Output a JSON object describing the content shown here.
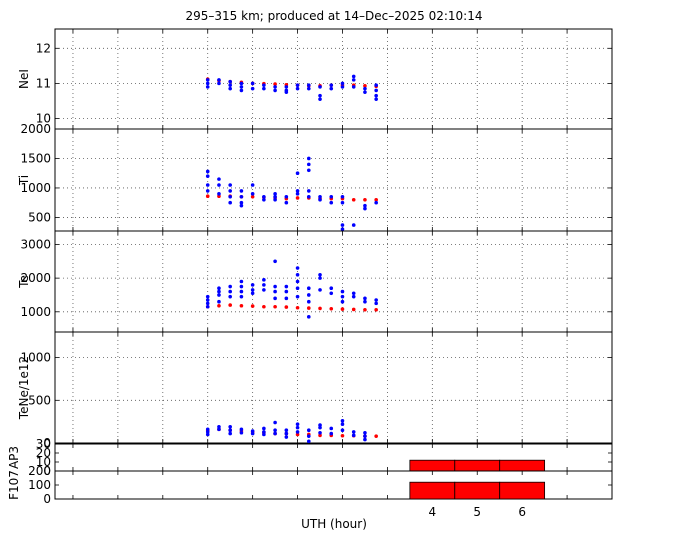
{
  "title": "295–315 km; produced at 14–Dec–2025 02:10:14",
  "xlabel": "UTH (hour)",
  "colors": {
    "model": "#ff0000",
    "measured": "#0000ff",
    "index_bar": "#ff0000"
  },
  "chart_data": [
    {
      "type": "scatter",
      "ylabel": "NeI",
      "ylim": [
        9.7,
        12.55
      ],
      "yticks": [
        10,
        11,
        12
      ],
      "grid": true,
      "series": [
        {
          "color": "red",
          "points": [
            [
              -1,
              11.12
            ],
            [
              -0.75,
              11.08
            ],
            [
              -0.5,
              11.05
            ],
            [
              -0.25,
              11.03
            ],
            [
              0,
              11.0
            ],
            [
              0.25,
              10.99
            ],
            [
              0.5,
              10.98
            ],
            [
              0.75,
              10.96
            ],
            [
              1,
              10.95
            ],
            [
              1.25,
              10.93
            ],
            [
              1.5,
              10.93
            ],
            [
              1.75,
              10.95
            ],
            [
              2,
              10.95
            ],
            [
              2.25,
              10.95
            ],
            [
              2.5,
              10.93
            ],
            [
              2.75,
              10.92
            ]
          ]
        },
        {
          "color": "blue",
          "points": [
            [
              -1,
              11.1
            ],
            [
              -1,
              11.0
            ],
            [
              -1,
              10.9
            ],
            [
              -0.75,
              11.1
            ],
            [
              -0.75,
              11.0
            ],
            [
              -0.5,
              11.05
            ],
            [
              -0.5,
              10.95
            ],
            [
              -0.5,
              10.85
            ],
            [
              -0.25,
              11.0
            ],
            [
              -0.25,
              10.9
            ],
            [
              -0.25,
              10.8
            ],
            [
              0,
              11.0
            ],
            [
              0,
              10.85
            ],
            [
              0.25,
              10.95
            ],
            [
              0.25,
              10.85
            ],
            [
              0.5,
              10.9
            ],
            [
              0.5,
              10.8
            ],
            [
              0.75,
              10.9
            ],
            [
              0.75,
              10.8
            ],
            [
              0.75,
              10.75
            ],
            [
              1,
              10.95
            ],
            [
              1,
              10.85
            ],
            [
              1.25,
              10.95
            ],
            [
              1.25,
              10.85
            ],
            [
              1.5,
              10.9
            ],
            [
              1.5,
              10.65
            ],
            [
              1.5,
              10.55
            ],
            [
              1.75,
              10.95
            ],
            [
              1.75,
              10.85
            ],
            [
              2,
              10.9
            ],
            [
              2,
              11.0
            ],
            [
              2.25,
              11.2
            ],
            [
              2.25,
              11.1
            ],
            [
              2.25,
              10.9
            ],
            [
              2.5,
              10.85
            ],
            [
              2.5,
              10.75
            ],
            [
              2.75,
              10.95
            ],
            [
              2.75,
              10.8
            ],
            [
              2.75,
              10.65
            ],
            [
              2.75,
              10.55
            ]
          ]
        }
      ]
    },
    {
      "type": "scatter",
      "ylabel": "Ti",
      "ylim": [
        270,
        2000
      ],
      "yticks": [
        500,
        1000,
        1500,
        2000
      ],
      "grid": true,
      "series": [
        {
          "color": "red",
          "points": [
            [
              -1,
              860
            ],
            [
              -0.75,
              860
            ],
            [
              -0.5,
              860
            ],
            [
              -0.25,
              850
            ],
            [
              0,
              850
            ],
            [
              0.25,
              840
            ],
            [
              0.5,
              830
            ],
            [
              0.75,
              820
            ],
            [
              1,
              830
            ],
            [
              1.25,
              830
            ],
            [
              1.5,
              820
            ],
            [
              1.75,
              820
            ],
            [
              2,
              820
            ],
            [
              2.25,
              800
            ],
            [
              2.5,
              800
            ],
            [
              2.75,
              800
            ]
          ]
        },
        {
          "color": "blue",
          "points": [
            [
              -1,
              1280
            ],
            [
              -1,
              1200
            ],
            [
              -1,
              1050
            ],
            [
              -1,
              950
            ],
            [
              -0.75,
              1150
            ],
            [
              -0.75,
              1050
            ],
            [
              -0.75,
              900
            ],
            [
              -0.5,
              1050
            ],
            [
              -0.5,
              950
            ],
            [
              -0.5,
              850
            ],
            [
              -0.5,
              750
            ],
            [
              -0.25,
              950
            ],
            [
              -0.25,
              850
            ],
            [
              -0.25,
              750
            ],
            [
              -0.25,
              700
            ],
            [
              0,
              1050
            ],
            [
              0,
              900
            ],
            [
              0.25,
              850
            ],
            [
              0.25,
              800
            ],
            [
              0.5,
              900
            ],
            [
              0.5,
              850
            ],
            [
              0.5,
              800
            ],
            [
              0.75,
              850
            ],
            [
              0.75,
              750
            ],
            [
              1,
              950
            ],
            [
              1,
              900
            ],
            [
              1,
              1250
            ],
            [
              1.25,
              1500
            ],
            [
              1.25,
              1400
            ],
            [
              1.25,
              1300
            ],
            [
              1.25,
              950
            ],
            [
              1.25,
              850
            ],
            [
              1.5,
              850
            ],
            [
              1.5,
              800
            ],
            [
              1.75,
              850
            ],
            [
              1.75,
              750
            ],
            [
              2,
              850
            ],
            [
              2,
              750
            ],
            [
              2,
              370
            ],
            [
              2,
              300
            ],
            [
              2.25,
              370
            ],
            [
              2.5,
              700
            ],
            [
              2.5,
              650
            ],
            [
              2.75,
              750
            ]
          ]
        }
      ]
    },
    {
      "type": "scatter",
      "ylabel": "Te",
      "ylim": [
        400,
        3400
      ],
      "yticks": [
        1000,
        2000,
        3000
      ],
      "grid": true,
      "series": [
        {
          "color": "red",
          "points": [
            [
              -1,
              1150
            ],
            [
              -0.75,
              1180
            ],
            [
              -0.5,
              1200
            ],
            [
              -0.25,
              1180
            ],
            [
              0,
              1170
            ],
            [
              0.25,
              1150
            ],
            [
              0.5,
              1150
            ],
            [
              0.75,
              1140
            ],
            [
              1,
              1120
            ],
            [
              1.25,
              1110
            ],
            [
              1.5,
              1100
            ],
            [
              1.75,
              1090
            ],
            [
              2,
              1080
            ],
            [
              2.25,
              1070
            ],
            [
              2.5,
              1060
            ],
            [
              2.75,
              1060
            ]
          ]
        },
        {
          "color": "blue",
          "points": [
            [
              -1,
              1450
            ],
            [
              -1,
              1350
            ],
            [
              -1,
              1250
            ],
            [
              -1,
              1150
            ],
            [
              -0.75,
              1700
            ],
            [
              -0.75,
              1600
            ],
            [
              -0.75,
              1500
            ],
            [
              -0.75,
              1300
            ],
            [
              -0.5,
              1750
            ],
            [
              -0.5,
              1600
            ],
            [
              -0.5,
              1450
            ],
            [
              -0.25,
              1900
            ],
            [
              -0.25,
              1750
            ],
            [
              -0.25,
              1600
            ],
            [
              -0.25,
              1450
            ],
            [
              0,
              1800
            ],
            [
              0,
              1650
            ],
            [
              0,
              1550
            ],
            [
              0.25,
              1950
            ],
            [
              0.25,
              1800
            ],
            [
              0.25,
              1650
            ],
            [
              0.5,
              2500
            ],
            [
              0.5,
              1750
            ],
            [
              0.5,
              1600
            ],
            [
              0.5,
              1400
            ],
            [
              0.75,
              1750
            ],
            [
              0.75,
              1600
            ],
            [
              0.75,
              1400
            ],
            [
              1,
              2300
            ],
            [
              1,
              2100
            ],
            [
              1,
              1900
            ],
            [
              1,
              1700
            ],
            [
              1,
              1450
            ],
            [
              1.25,
              1700
            ],
            [
              1.25,
              1500
            ],
            [
              1.25,
              1300
            ],
            [
              1.25,
              850
            ],
            [
              1.5,
              2100
            ],
            [
              1.5,
              2000
            ],
            [
              1.5,
              1650
            ],
            [
              1.75,
              1700
            ],
            [
              1.75,
              1550
            ],
            [
              2,
              1600
            ],
            [
              2,
              1450
            ],
            [
              2,
              1300
            ],
            [
              2.25,
              1550
            ],
            [
              2.25,
              1450
            ],
            [
              2.5,
              1400
            ],
            [
              2.5,
              1300
            ],
            [
              2.75,
              1350
            ],
            [
              2.75,
              1250
            ]
          ]
        }
      ]
    },
    {
      "type": "scatter",
      "ylabel": "TeNe/1e12",
      "ylim": [
        0,
        1300
      ],
      "yticks": [
        0,
        500,
        1000
      ],
      "grid": true,
      "series": [
        {
          "color": "red",
          "points": [
            [
              -1,
              150
            ],
            [
              -0.75,
              160
            ],
            [
              -0.5,
              150
            ],
            [
              -0.25,
              140
            ],
            [
              0,
              130
            ],
            [
              0.25,
              120
            ],
            [
              0.5,
              110
            ],
            [
              0.75,
              110
            ],
            [
              1,
              100
            ],
            [
              1.25,
              100
            ],
            [
              1.5,
              90
            ],
            [
              1.75,
              90
            ],
            [
              2,
              85
            ],
            [
              2.25,
              85
            ],
            [
              2.5,
              80
            ],
            [
              2.75,
              80
            ]
          ]
        },
        {
          "color": "blue",
          "points": [
            [
              -1,
              160
            ],
            [
              -1,
              130
            ],
            [
              -1,
              100
            ],
            [
              -0.75,
              190
            ],
            [
              -0.75,
              160
            ],
            [
              -0.5,
              190
            ],
            [
              -0.5,
              150
            ],
            [
              -0.5,
              110
            ],
            [
              -0.25,
              160
            ],
            [
              -0.25,
              120
            ],
            [
              0,
              140
            ],
            [
              0,
              110
            ],
            [
              0.25,
              170
            ],
            [
              0.25,
              130
            ],
            [
              0.25,
              100
            ],
            [
              0.5,
              240
            ],
            [
              0.5,
              150
            ],
            [
              0.5,
              110
            ],
            [
              0.75,
              150
            ],
            [
              0.75,
              110
            ],
            [
              0.75,
              70
            ],
            [
              1,
              220
            ],
            [
              1,
              180
            ],
            [
              1,
              130
            ],
            [
              1.25,
              150
            ],
            [
              1.25,
              80
            ],
            [
              1.25,
              20
            ],
            [
              1.5,
              210
            ],
            [
              1.5,
              180
            ],
            [
              1.5,
              120
            ],
            [
              1.75,
              170
            ],
            [
              1.75,
              110
            ],
            [
              2,
              260
            ],
            [
              2,
              220
            ],
            [
              2,
              150
            ],
            [
              2.25,
              130
            ],
            [
              2.25,
              90
            ],
            [
              2.5,
              120
            ],
            [
              2.5,
              80
            ],
            [
              2.5,
              40
            ]
          ]
        }
      ]
    },
    {
      "type": "bar",
      "ylabel": "AP3",
      "ylim": [
        0,
        30
      ],
      "yticks": [
        0,
        10,
        20,
        30
      ],
      "bars": [
        {
          "x0": 3.5,
          "x1": 4.5,
          "value": 12
        },
        {
          "x0": 4.5,
          "x1": 5.5,
          "value": 12
        },
        {
          "x0": 5.5,
          "x1": 6.5,
          "value": 12
        }
      ]
    },
    {
      "type": "bar",
      "ylabel": "F107",
      "ylim": [
        0,
        200
      ],
      "yticks": [
        0,
        100,
        200
      ],
      "bars": [
        {
          "x0": 3.5,
          "x1": 4.5,
          "value": 120
        },
        {
          "x0": 4.5,
          "x1": 5.5,
          "value": 120
        },
        {
          "x0": 5.5,
          "x1": 6.5,
          "value": 120
        }
      ]
    }
  ],
  "x_axis": {
    "xlim": [
      -4.4,
      8.0
    ],
    "ticks": [
      4,
      5,
      6
    ],
    "grid_lines": [
      -4,
      -3,
      -2,
      -1,
      0,
      1,
      2,
      3,
      4,
      5,
      6,
      7
    ]
  }
}
